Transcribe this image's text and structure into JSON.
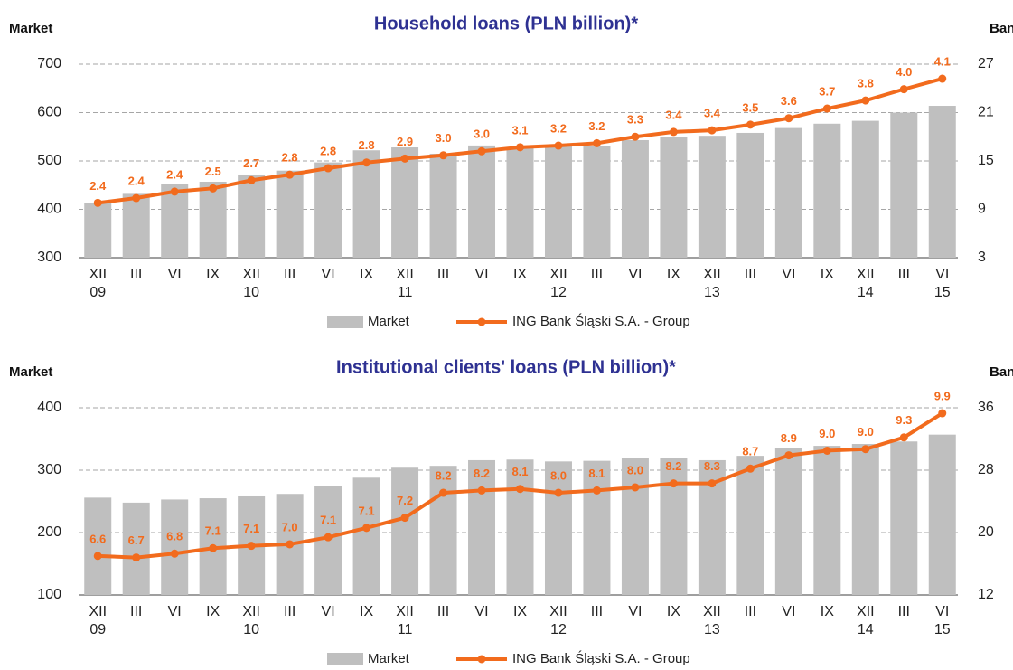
{
  "chart_data": [
    {
      "type": "combo",
      "title": "Household loans (PLN billion)*",
      "y_label": "Market",
      "y2_label": "Bank",
      "categories": [
        [
          "XII",
          "09"
        ],
        [
          "III"
        ],
        [
          "VI"
        ],
        [
          "IX"
        ],
        [
          "XII",
          "10"
        ],
        [
          "III"
        ],
        [
          "VI"
        ],
        [
          "IX"
        ],
        [
          "XII",
          "11"
        ],
        [
          "III"
        ],
        [
          "VI"
        ],
        [
          "IX"
        ],
        [
          "XII",
          "12"
        ],
        [
          "III"
        ],
        [
          "VI"
        ],
        [
          "IX"
        ],
        [
          "XII",
          "13"
        ],
        [
          "III"
        ],
        [
          "VI"
        ],
        [
          "IX"
        ],
        [
          "XII",
          "14"
        ],
        [
          "III"
        ],
        [
          "VI",
          "15"
        ]
      ],
      "series": [
        {
          "name": "Market",
          "color": "#bfbfbf",
          "values": [
            414,
            432,
            453,
            457,
            472,
            480,
            497,
            522,
            528,
            515,
            532,
            527,
            530,
            530,
            543,
            550,
            552,
            558,
            568,
            577,
            583,
            600,
            614
          ]
        },
        {
          "name": "ING Bank Śląski S.A. - Group",
          "color": "#f26b1d",
          "axis": "y2",
          "values": [
            9.8,
            10.4,
            11.2,
            11.6,
            12.6,
            13.3,
            14.1,
            14.8,
            15.3,
            15.7,
            16.2,
            16.7,
            16.9,
            17.2,
            18.0,
            18.6,
            18.8,
            19.5,
            20.3,
            21.5,
            22.5,
            23.9,
            25.2
          ],
          "point_labels": [
            "2.4",
            "2.4",
            "2.4",
            "2.5",
            "2.7",
            "2.8",
            "2.8",
            "2.8",
            "2.9",
            "3.0",
            "3.0",
            "3.1",
            "3.2",
            "3.2",
            "3.3",
            "3.4",
            "3.4",
            "3.5",
            "3.6",
            "3.7",
            "3.8",
            "4.0",
            "4.1"
          ]
        }
      ],
      "ylim": [
        300,
        700
      ],
      "yticks": [
        300,
        400,
        500,
        600,
        700
      ],
      "y2lim": [
        3,
        27
      ],
      "y2ticks": [
        3,
        9,
        15,
        21,
        27
      ],
      "grid": true
    },
    {
      "type": "combo",
      "title": "Institutional clients' loans (PLN billion)*",
      "y_label": "Market",
      "y2_label": "Bank",
      "categories": [
        [
          "XII",
          "09"
        ],
        [
          "III"
        ],
        [
          "VI"
        ],
        [
          "IX"
        ],
        [
          "XII",
          "10"
        ],
        [
          "III"
        ],
        [
          "VI"
        ],
        [
          "IX"
        ],
        [
          "XII",
          "11"
        ],
        [
          "III"
        ],
        [
          "VI"
        ],
        [
          "IX"
        ],
        [
          "XII",
          "12"
        ],
        [
          "III"
        ],
        [
          "VI"
        ],
        [
          "IX"
        ],
        [
          "XII",
          "13"
        ],
        [
          "III"
        ],
        [
          "VI"
        ],
        [
          "IX"
        ],
        [
          "XII",
          "14"
        ],
        [
          "III"
        ],
        [
          "VI",
          "15"
        ]
      ],
      "series": [
        {
          "name": "Market",
          "color": "#bfbfbf",
          "values": [
            256,
            248,
            253,
            255,
            258,
            262,
            275,
            288,
            304,
            307,
            316,
            317,
            314,
            315,
            320,
            320,
            316,
            323,
            335,
            339,
            342,
            346,
            357
          ]
        },
        {
          "name": "ING Bank Śląski S.A. - Group",
          "color": "#f26b1d",
          "axis": "y2",
          "values": [
            17.0,
            16.8,
            17.3,
            18.0,
            18.3,
            18.5,
            19.4,
            20.6,
            21.9,
            25.1,
            25.4,
            25.6,
            25.1,
            25.4,
            25.8,
            26.3,
            26.3,
            28.2,
            29.9,
            30.5,
            30.7,
            32.2,
            35.3
          ],
          "point_labels": [
            "6.6",
            "6.7",
            "6.8",
            "7.1",
            "7.1",
            "7.0",
            "7.1",
            "7.1",
            "7.2",
            "8.2",
            "8.2",
            "8.1",
            "8.0",
            "8.1",
            "8.0",
            "8.2",
            "8.3",
            "8.7",
            "8.9",
            "9.0",
            "9.0",
            "9.3",
            "9.9"
          ]
        }
      ],
      "ylim": [
        100,
        400
      ],
      "yticks": [
        100,
        200,
        300,
        400
      ],
      "y2lim": [
        12,
        36
      ],
      "y2ticks": [
        12,
        20,
        28,
        36
      ],
      "grid": true
    }
  ]
}
